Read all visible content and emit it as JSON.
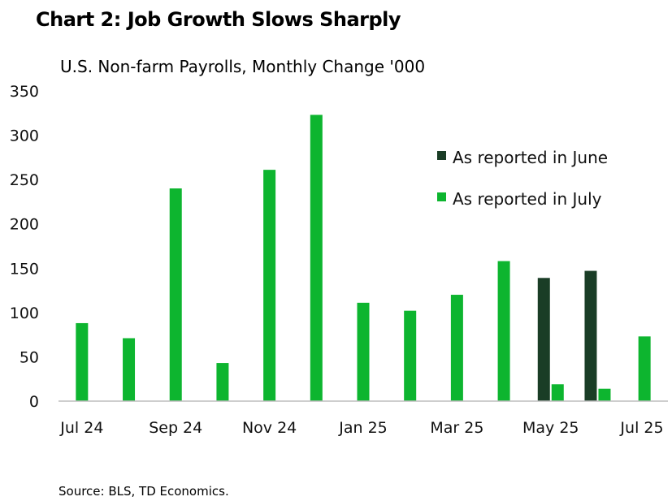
{
  "chart_data": {
    "type": "bar",
    "title": "Chart 2: Job Growth Slows Sharply",
    "subtitle": "U.S. Non-farm Payrolls, Monthly Change '000",
    "source": "Source: BLS, TD Economics.",
    "categories": [
      "Jul 24",
      "Aug 24",
      "Sep 24",
      "Oct 24",
      "Nov 24",
      "Dec 24",
      "Jan 25",
      "Feb 25",
      "Mar 25",
      "Apr 25",
      "May 25",
      "Jun 25",
      "Jul 25"
    ],
    "x_tick_labels": [
      "Jul 24",
      "",
      "Sep 24",
      "",
      "Nov 24",
      "",
      "Jan 25",
      "",
      "Mar 25",
      "",
      "May 25",
      "",
      "Jul 25"
    ],
    "series": [
      {
        "name": "As reported in June",
        "color": "#1a3d26",
        "values": [
          null,
          null,
          null,
          null,
          null,
          null,
          null,
          null,
          null,
          null,
          139,
          147,
          null
        ]
      },
      {
        "name": "As reported in July",
        "color": "#0db52f",
        "values": [
          88,
          71,
          240,
          43,
          261,
          323,
          111,
          102,
          120,
          158,
          19,
          14,
          73
        ]
      }
    ],
    "ylim": [
      0,
      350
    ],
    "yticks": [
      0,
      50,
      100,
      150,
      200,
      250,
      300,
      350
    ],
    "xlabel": "",
    "ylabel": "",
    "legend_position": "right"
  }
}
